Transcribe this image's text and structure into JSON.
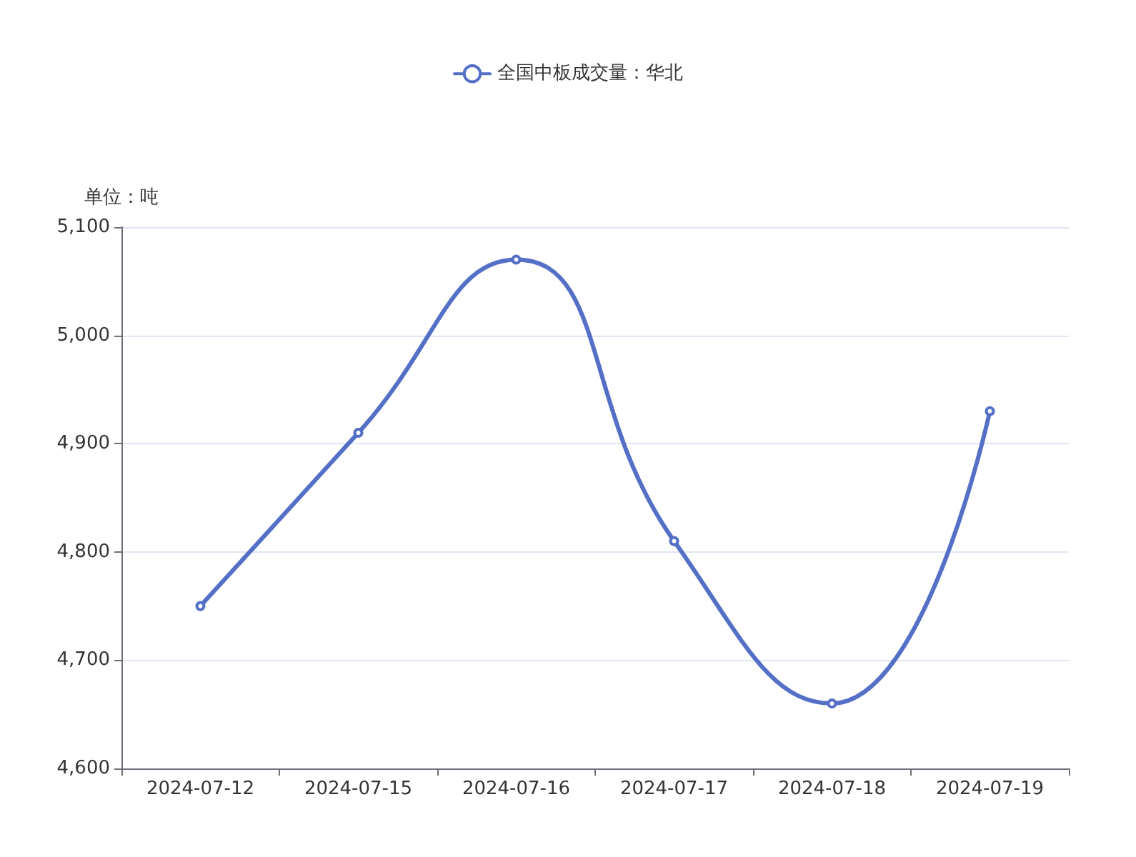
{
  "chart_data": {
    "type": "line",
    "ylabel": "单位：吨",
    "categories": [
      "2024-07-12",
      "2024-07-15",
      "2024-07-16",
      "2024-07-17",
      "2024-07-18",
      "2024-07-19"
    ],
    "series": [
      {
        "name": "全国中板成交量：华北",
        "color": "#5470c6",
        "values": [
          4750,
          4910,
          5070,
          4810,
          4660,
          4930
        ]
      }
    ],
    "ylim": [
      4600,
      5100
    ],
    "yticks": [
      {
        "value": 4600,
        "label": "4,600"
      },
      {
        "value": 4700,
        "label": "4,700"
      },
      {
        "value": 4800,
        "label": "4,800"
      },
      {
        "value": 4900,
        "label": "4,900"
      },
      {
        "value": 5000,
        "label": "5,000"
      },
      {
        "value": 5100,
        "label": "5,100"
      }
    ],
    "grid": "y",
    "legend": "top",
    "marker": "circle",
    "line_style": "solid"
  }
}
